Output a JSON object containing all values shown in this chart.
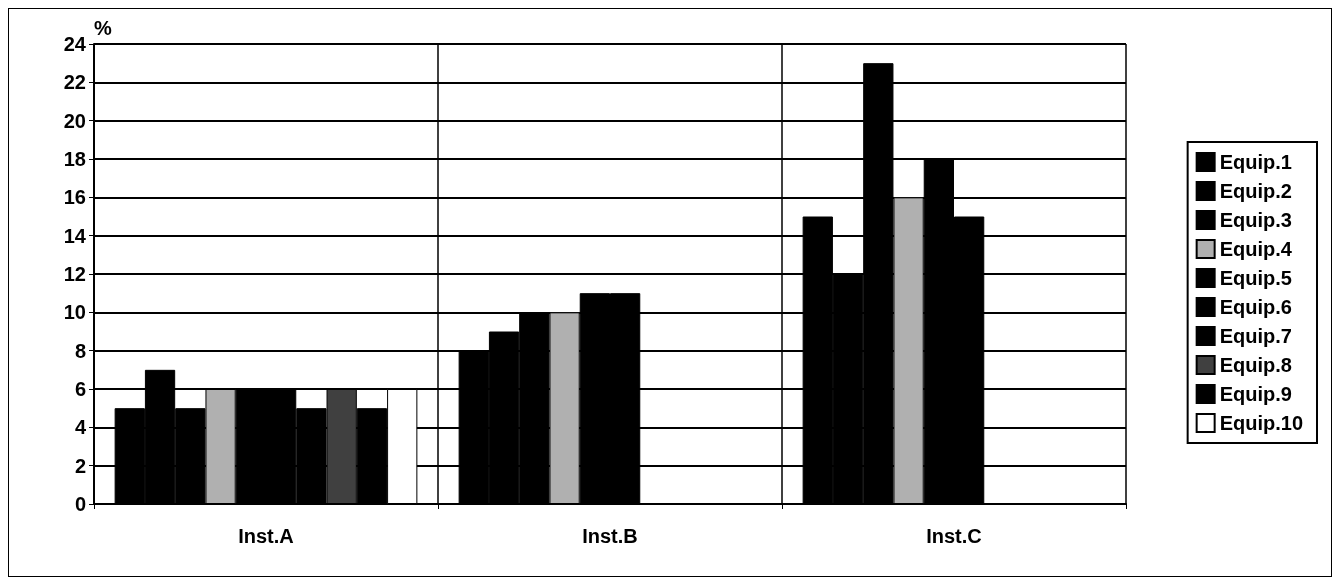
{
  "chart_data": {
    "type": "bar",
    "ylabel": "%",
    "categories": [
      "Inst.A",
      "Inst.B",
      "Inst.C"
    ],
    "series": [
      {
        "name": "Equip.1",
        "color": "#000000",
        "values": [
          5,
          8,
          15
        ]
      },
      {
        "name": "Equip.2",
        "color": "#000000",
        "values": [
          7,
          9,
          12
        ]
      },
      {
        "name": "Equip.3",
        "color": "#000000",
        "values": [
          5,
          10,
          23
        ]
      },
      {
        "name": "Equip.4",
        "color": "#b0b0b0",
        "values": [
          6,
          10,
          16
        ]
      },
      {
        "name": "Equip.5",
        "color": "#000000",
        "values": [
          6,
          11,
          18
        ]
      },
      {
        "name": "Equip.6",
        "color": "#000000",
        "values": [
          6,
          11,
          15
        ]
      },
      {
        "name": "Equip.7",
        "color": "#000000",
        "values": [
          5,
          null,
          null
        ]
      },
      {
        "name": "Equip.8",
        "color": "#404040",
        "values": [
          6,
          null,
          null
        ]
      },
      {
        "name": "Equip.9",
        "color": "#000000",
        "values": [
          5,
          null,
          null
        ]
      },
      {
        "name": "Equip.10",
        "color": "#ffffff",
        "values": [
          6,
          null,
          null
        ]
      }
    ],
    "ylim": [
      0,
      24
    ],
    "yticks": [
      0,
      2,
      4,
      6,
      8,
      10,
      12,
      14,
      16,
      18,
      20,
      22,
      24
    ],
    "grid": true,
    "legend": "right"
  }
}
